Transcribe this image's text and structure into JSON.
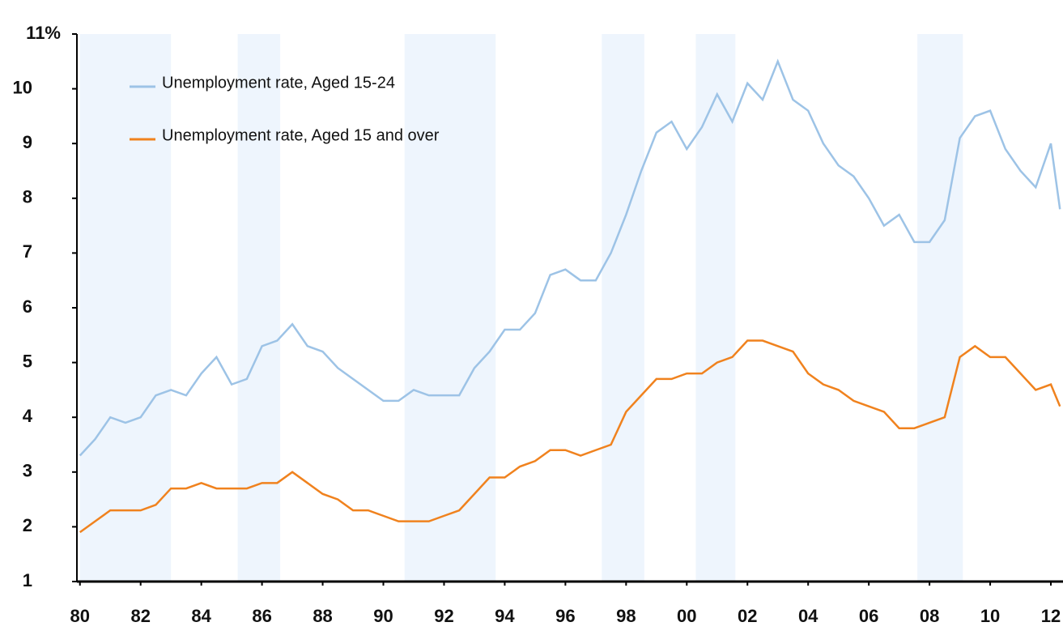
{
  "chart_data": {
    "type": "line",
    "x": [
      1980,
      1980.5,
      1981,
      1981.5,
      1982,
      1982.5,
      1983,
      1983.5,
      1984,
      1984.5,
      1985,
      1985.5,
      1986,
      1986.5,
      1987,
      1987.5,
      1988,
      1988.5,
      1989,
      1989.5,
      1990,
      1990.5,
      1991,
      1991.5,
      1992,
      1992.5,
      1993,
      1993.5,
      1994,
      1994.5,
      1995,
      1995.5,
      1996,
      1996.5,
      1997,
      1997.5,
      1998,
      1998.5,
      1999,
      1999.5,
      2000,
      2000.5,
      2001,
      2001.5,
      2002,
      2002.5,
      2003,
      2003.5,
      2004,
      2004.5,
      2005,
      2005.5,
      2006,
      2006.5,
      2007,
      2007.5,
      2008,
      2008.5,
      2009,
      2009.5,
      2010,
      2010.5,
      2011,
      2011.5,
      2012,
      2012.3
    ],
    "series": [
      {
        "name": "Unemployment rate, Aged 15-24",
        "color": "#9dc3e6",
        "values": [
          3.3,
          3.6,
          4.0,
          3.9,
          4.0,
          4.4,
          4.5,
          4.4,
          4.8,
          5.1,
          4.6,
          4.7,
          5.3,
          5.4,
          5.7,
          5.3,
          5.2,
          4.9,
          4.7,
          4.5,
          4.3,
          4.3,
          4.5,
          4.4,
          4.4,
          4.4,
          4.9,
          5.2,
          5.6,
          5.6,
          5.9,
          6.6,
          6.7,
          6.5,
          6.5,
          7.0,
          7.7,
          8.5,
          9.2,
          9.4,
          8.9,
          9.3,
          9.9,
          9.4,
          10.1,
          9.8,
          10.5,
          9.8,
          9.6,
          9.0,
          8.6,
          8.4,
          8.0,
          7.5,
          7.7,
          7.2,
          7.2,
          7.6,
          9.1,
          9.5,
          9.6,
          8.9,
          8.5,
          8.2,
          9.0,
          7.8
        ]
      },
      {
        "name": "Unemployment rate, Aged 15 and over",
        "color": "#f0821e",
        "values": [
          1.9,
          2.1,
          2.3,
          2.3,
          2.3,
          2.4,
          2.7,
          2.7,
          2.8,
          2.7,
          2.7,
          2.7,
          2.8,
          2.8,
          3.0,
          2.8,
          2.6,
          2.5,
          2.3,
          2.3,
          2.2,
          2.1,
          2.1,
          2.1,
          2.2,
          2.3,
          2.6,
          2.9,
          2.9,
          3.1,
          3.2,
          3.4,
          3.4,
          3.3,
          3.4,
          3.5,
          4.1,
          4.4,
          4.7,
          4.7,
          4.8,
          4.8,
          5.0,
          5.1,
          5.4,
          5.4,
          5.3,
          5.2,
          4.8,
          4.6,
          4.5,
          4.3,
          4.2,
          4.1,
          3.8,
          3.8,
          3.9,
          4.0,
          5.1,
          5.3,
          5.1,
          5.1,
          4.8,
          4.5,
          4.6,
          4.2
        ]
      }
    ],
    "shaded_periods": [
      [
        1980.0,
        1983.0
      ],
      [
        1985.2,
        1986.6
      ],
      [
        1990.7,
        1993.7
      ],
      [
        1997.2,
        1998.6
      ],
      [
        2000.3,
        2001.6
      ],
      [
        2007.6,
        2009.1
      ]
    ],
    "shade_color": "#eef5fd",
    "xlim": [
      1979.9,
      2012.4
    ],
    "xticks": [
      {
        "value": 1980,
        "label": "80"
      },
      {
        "value": 1982,
        "label": "82"
      },
      {
        "value": 1984,
        "label": "84"
      },
      {
        "value": 1986,
        "label": "86"
      },
      {
        "value": 1988,
        "label": "88"
      },
      {
        "value": 1990,
        "label": "90"
      },
      {
        "value": 1992,
        "label": "92"
      },
      {
        "value": 1994,
        "label": "94"
      },
      {
        "value": 1996,
        "label": "96"
      },
      {
        "value": 1998,
        "label": "98"
      },
      {
        "value": 2000,
        "label": "00"
      },
      {
        "value": 2002,
        "label": "02"
      },
      {
        "value": 2004,
        "label": "04"
      },
      {
        "value": 2006,
        "label": "06"
      },
      {
        "value": 2008,
        "label": "08"
      },
      {
        "value": 2010,
        "label": "10"
      },
      {
        "value": 2012,
        "label": "12"
      }
    ],
    "ylim": [
      1,
      11
    ],
    "yticks": [
      1,
      2,
      3,
      4,
      5,
      6,
      7,
      8,
      9,
      10,
      {
        "value": 11,
        "label": "11%"
      }
    ]
  }
}
